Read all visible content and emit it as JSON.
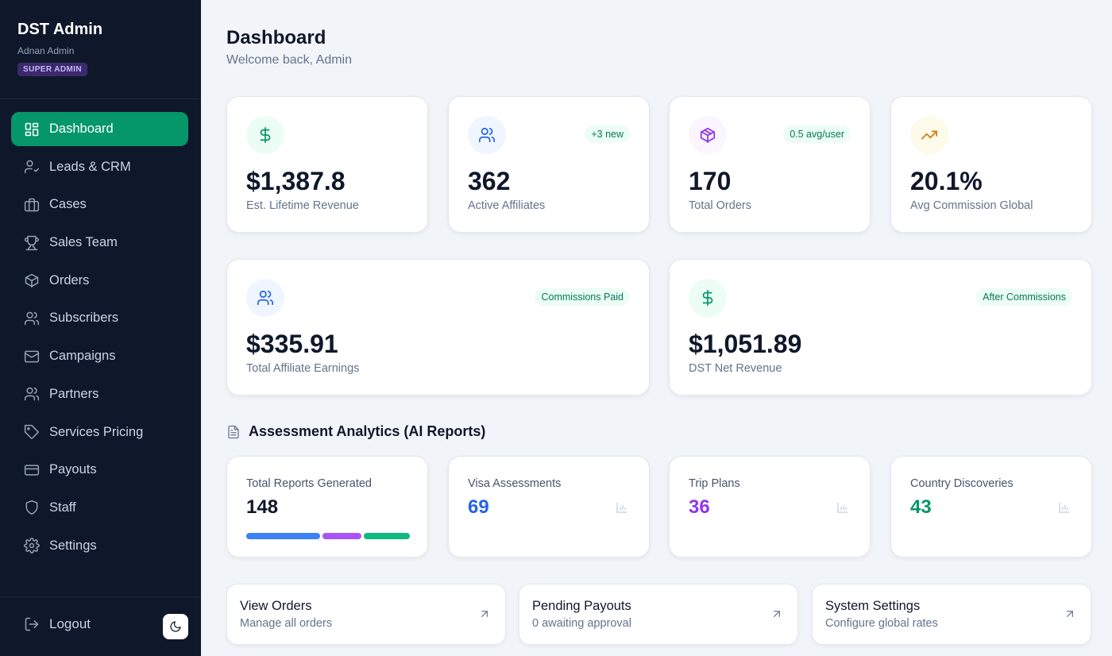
{
  "sidebar": {
    "brand_title": "DST Admin",
    "user_name": "Adnan Admin",
    "role_badge": "SUPER ADMIN",
    "items": [
      {
        "label": "Dashboard",
        "icon": "layout-grid-icon",
        "active": true
      },
      {
        "label": "Leads & CRM",
        "icon": "user-check-icon"
      },
      {
        "label": "Cases",
        "icon": "briefcase-icon"
      },
      {
        "label": "Sales Team",
        "icon": "trophy-icon"
      },
      {
        "label": "Orders",
        "icon": "package-icon"
      },
      {
        "label": "Subscribers",
        "icon": "users-icon"
      },
      {
        "label": "Campaigns",
        "icon": "mail-icon"
      },
      {
        "label": "Partners",
        "icon": "users-icon"
      },
      {
        "label": "Services Pricing",
        "icon": "tag-icon"
      },
      {
        "label": "Payouts",
        "icon": "credit-card-icon"
      },
      {
        "label": "Staff",
        "icon": "shield-icon"
      },
      {
        "label": "Settings",
        "icon": "gear-icon"
      }
    ],
    "logout_label": "Logout"
  },
  "header": {
    "title": "Dashboard",
    "subtitle": "Welcome back, Admin"
  },
  "stats": [
    {
      "value": "$1,387.8",
      "label": "Est. Lifetime Revenue",
      "icon": "dollar-icon",
      "icon_color": "#059669",
      "icon_bg": "#ecfdf5"
    },
    {
      "value": "362",
      "label": "Active Affiliates",
      "icon": "users-icon",
      "icon_color": "#2563eb",
      "icon_bg": "#eff6ff",
      "pill": "+3 new"
    },
    {
      "value": "170",
      "label": "Total Orders",
      "icon": "package-icon",
      "icon_color": "#9333ea",
      "icon_bg": "#faf5ff",
      "pill": "0.5 avg/user"
    },
    {
      "value": "20.1%",
      "label": "Avg Commission Global",
      "icon": "trending-up-icon",
      "icon_color": "#d97706",
      "icon_bg": "#fffbeb"
    }
  ],
  "wide_stats": [
    {
      "value": "$335.91",
      "label": "Total Affiliate Earnings",
      "icon": "users-icon",
      "icon_color": "#2563eb",
      "icon_bg": "#eff6ff",
      "pill": "Commissions Paid"
    },
    {
      "value": "$1,051.89",
      "label": "DST Net Revenue",
      "icon": "dollar-icon",
      "icon_color": "#059669",
      "icon_bg": "#ecfdf5",
      "pill": "After Commissions"
    }
  ],
  "analytics": {
    "title": "Assessment Analytics (AI Reports)",
    "total_label": "Total Reports Generated",
    "total_value": "148",
    "breakdown": [
      {
        "label": "Visa Assessments",
        "value": "69",
        "color": "#2563eb",
        "bar_color": "#3b82f6"
      },
      {
        "label": "Trip Plans",
        "value": "36",
        "color": "#9333ea",
        "bar_color": "#a855f7"
      },
      {
        "label": "Country Discoveries",
        "value": "43",
        "color": "#059669",
        "bar_color": "#10b981"
      }
    ]
  },
  "quick_links": [
    {
      "title": "View Orders",
      "subtitle": "Manage all orders"
    },
    {
      "title": "Pending Payouts",
      "subtitle": "0 awaiting approval"
    },
    {
      "title": "System Settings",
      "subtitle": "Configure global rates"
    }
  ]
}
